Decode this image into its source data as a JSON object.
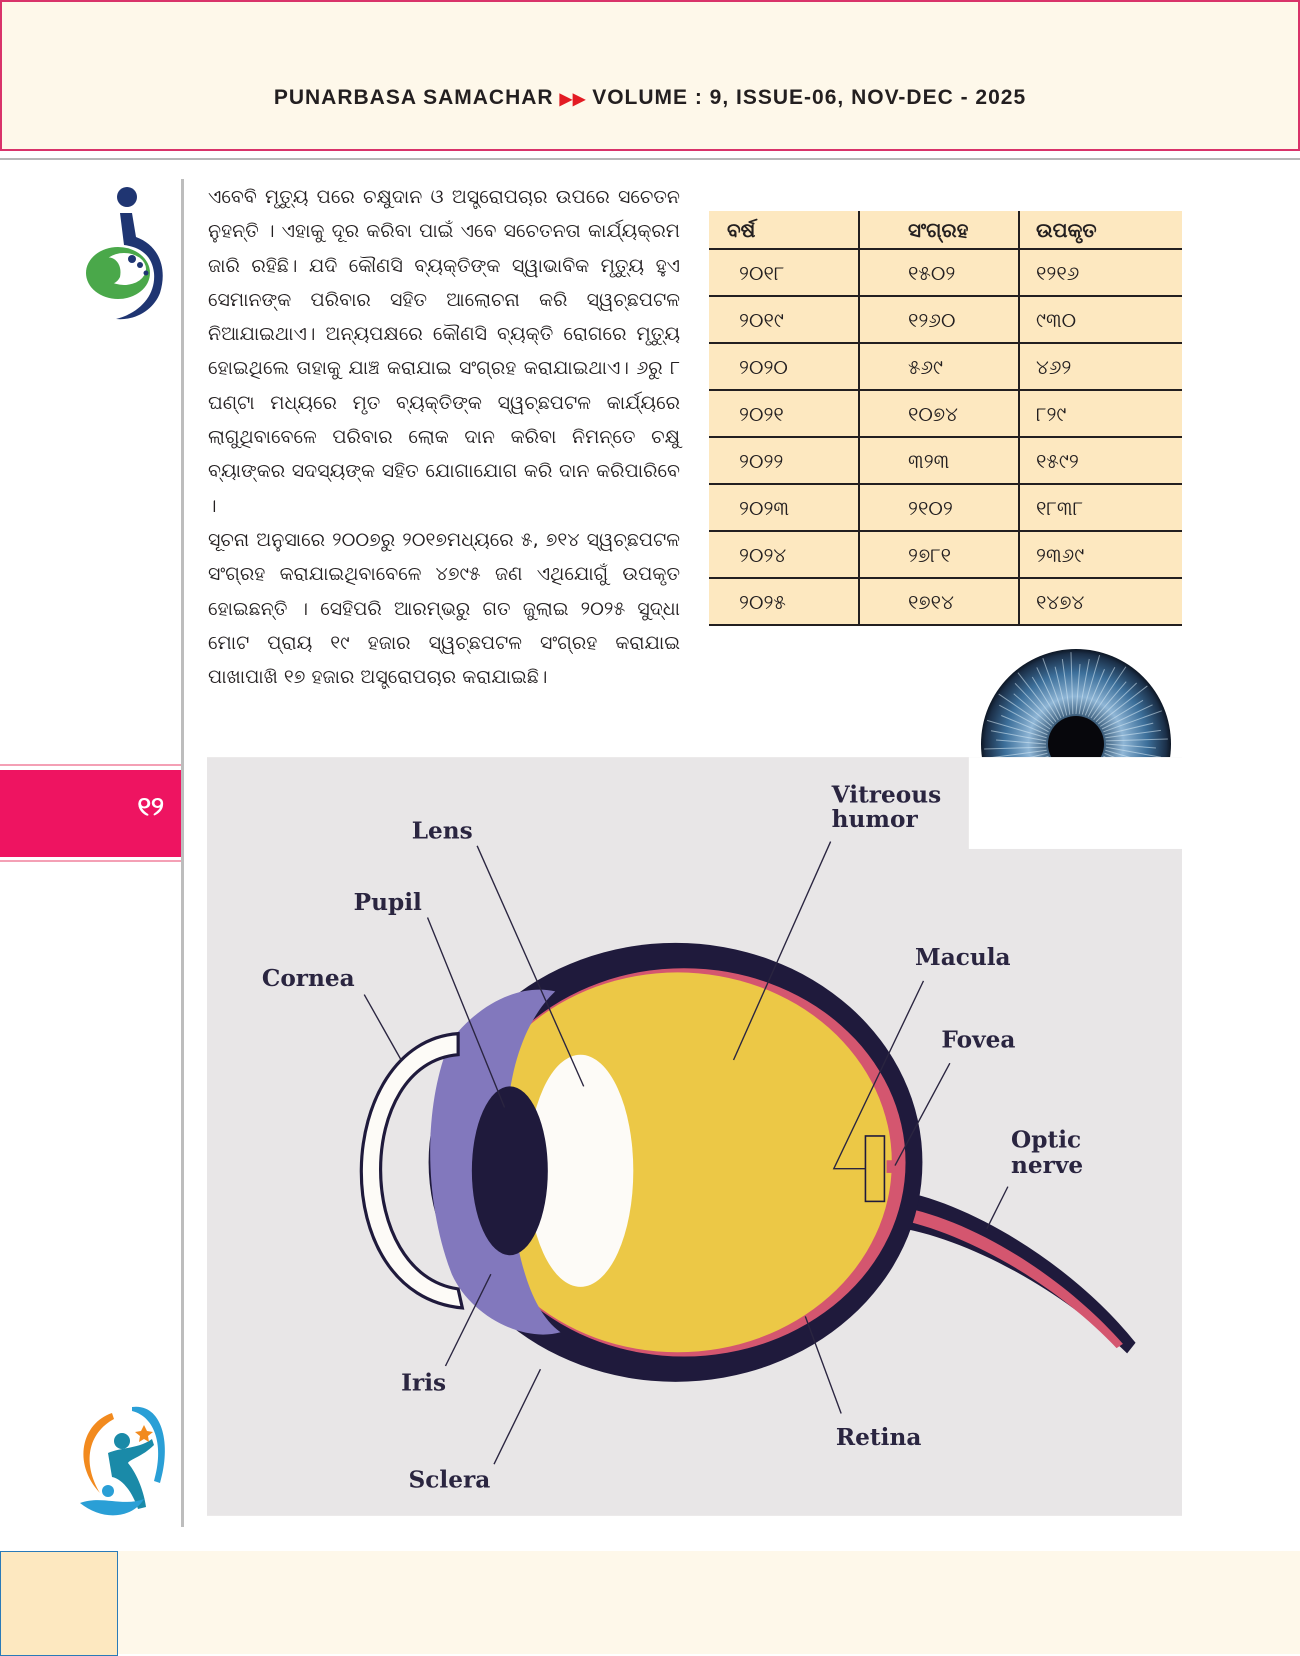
{
  "header": {
    "publication": "PUNARBASA SAMACHAR",
    "issue": "VOLUME : 9, ISSUE-06, NOV-DEC - 2025",
    "separator_icon": "double-triangle-arrow",
    "accent_color": "#d9336a"
  },
  "page_number": "୧୨",
  "article": {
    "paragraphs": [
      "ଏବେବି ମୃତ୍ୟୁ ପରେ ଚକ୍ଷୁଦାନ ଓ ଅସ୍ତ୍ରୋପଚାର ଉପରେ ସଚେତନ ନୁହନ୍ତି । ଏହାକୁ ଦୂର କରିବା ପାଇଁ ଏବେ ସଚେତନତା କାର୍ଯ୍ୟକ୍ରମ ଜାରି ରହିଛି। ଯଦି କୌଣସି ବ୍ୟକ୍ତିଙ୍କ ସ୍ୱାଭାବିକ ମୃତ୍ୟୁ ହୁଏ ସେମାନଙ୍କ ପରିବାର ସହିତ ଆଲୋଚନା କରି ସ୍ୱଚ୍ଛପଟଳ ନିଆଯାଇଥାଏ। ଅନ୍ୟପକ୍ଷରେ କୌଣସି ବ୍ୟକ୍ତି ରୋଗରେ ମୃତ୍ୟୁ ହୋଇଥିଲେ ତାହାକୁ ଯାଞ୍ଚ କରାଯାଇ ସଂଗ୍ରହ କରାଯାଇଥାଏ। ୬ରୁ ୮ ଘଣ୍ଟା ମଧ୍ୟରେ ମୃତ ବ୍ୟକ୍ତିଙ୍କ ସ୍ୱଚ୍ଛପଟଳ କାର୍ଯ୍ୟରେ ଲାଗୁଥିବାବେଳେ ପରିବାର ଲୋକ ଦାନ କରିବା ନିମନ୍ତେ ଚକ୍ଷୁ ବ୍ୟାଙ୍କର ସଦସ୍ୟଙ୍କ ସହିତ ଯୋଗାଯୋଗ କରି ଦାନ କରିପାରିବେ ।",
      "ସୂଚନା ଅନୁସାରେ ୨୦୦୭ରୁ ୨୦୧୭ମଧ୍ୟରେ ୫, ୭୧୪ ସ୍ୱଚ୍ଛପଟଳ ସଂଗ୍ରହ କରାଯାଇଥିବାବେଳେ ୪୭୯୫ ଜଣ ଏଥିଯୋଗୁଁ ଉପକୃତ ହୋଇଛନ୍ତି । ସେହିପରି ଆରମ୍ଭରୁ ଗତ ଜୁଲାଇ ୨୦୨୫ ସୁଦ୍ଧା ମୋଟ ପ୍ରାୟ ୧୯ ହଜାର ସ୍ୱଚ୍ଛପଟଳ ସଂଗ୍ରହ କରାଯାଇ ପାଖାପାଖି ୧୭ ହଜାର ଅସ୍ତ୍ରୋପଚାର କରାଯାଇଛି।"
    ]
  },
  "table": {
    "headers": [
      "ବର୍ଷ",
      "ସଂଗ୍ରହ",
      "ଉପକୃତ"
    ],
    "rows": [
      [
        "୨୦୧୮",
        "୧୫୦୨",
        "୧୨୧୬"
      ],
      [
        "୨୦୧୯",
        "୧୨୬୦",
        "୯୩୦"
      ],
      [
        "୨୦୨୦",
        "୫୬୯",
        "୪୬୨"
      ],
      [
        "୨୦୨୧",
        "୧୦୭୪",
        "୮୨୯"
      ],
      [
        "୨୦୨୨",
        "୩୨୩",
        "୧୫୯୨"
      ],
      [
        "୨୦୨୩",
        "୨୧୦୨",
        "୧୮୩୮"
      ],
      [
        "୨୦୨୪",
        "୨୭୮୧",
        "୨୩୬୯"
      ],
      [
        "୨୦୨୫",
        "୧୭୧୪",
        "୧୪୭୪"
      ]
    ]
  },
  "diagram": {
    "labels": {
      "lens": "Lens",
      "pupil": "Pupil",
      "cornea": "Cornea",
      "vitreous1": "Vitreous",
      "vitreous2": "humor",
      "macula": "Macula",
      "fovea": "Fovea",
      "optic1": "Optic",
      "optic2": "nerve",
      "iris": "Iris",
      "sclera": "Sclera",
      "retina": "Retina"
    },
    "colors": {
      "sclera": "#1f1a3c",
      "vitreous": "#ecc846",
      "retina": "#d4566f",
      "iris": "#8278bd",
      "lens": "#fdfbf7",
      "background": "#e8e6e7"
    }
  }
}
